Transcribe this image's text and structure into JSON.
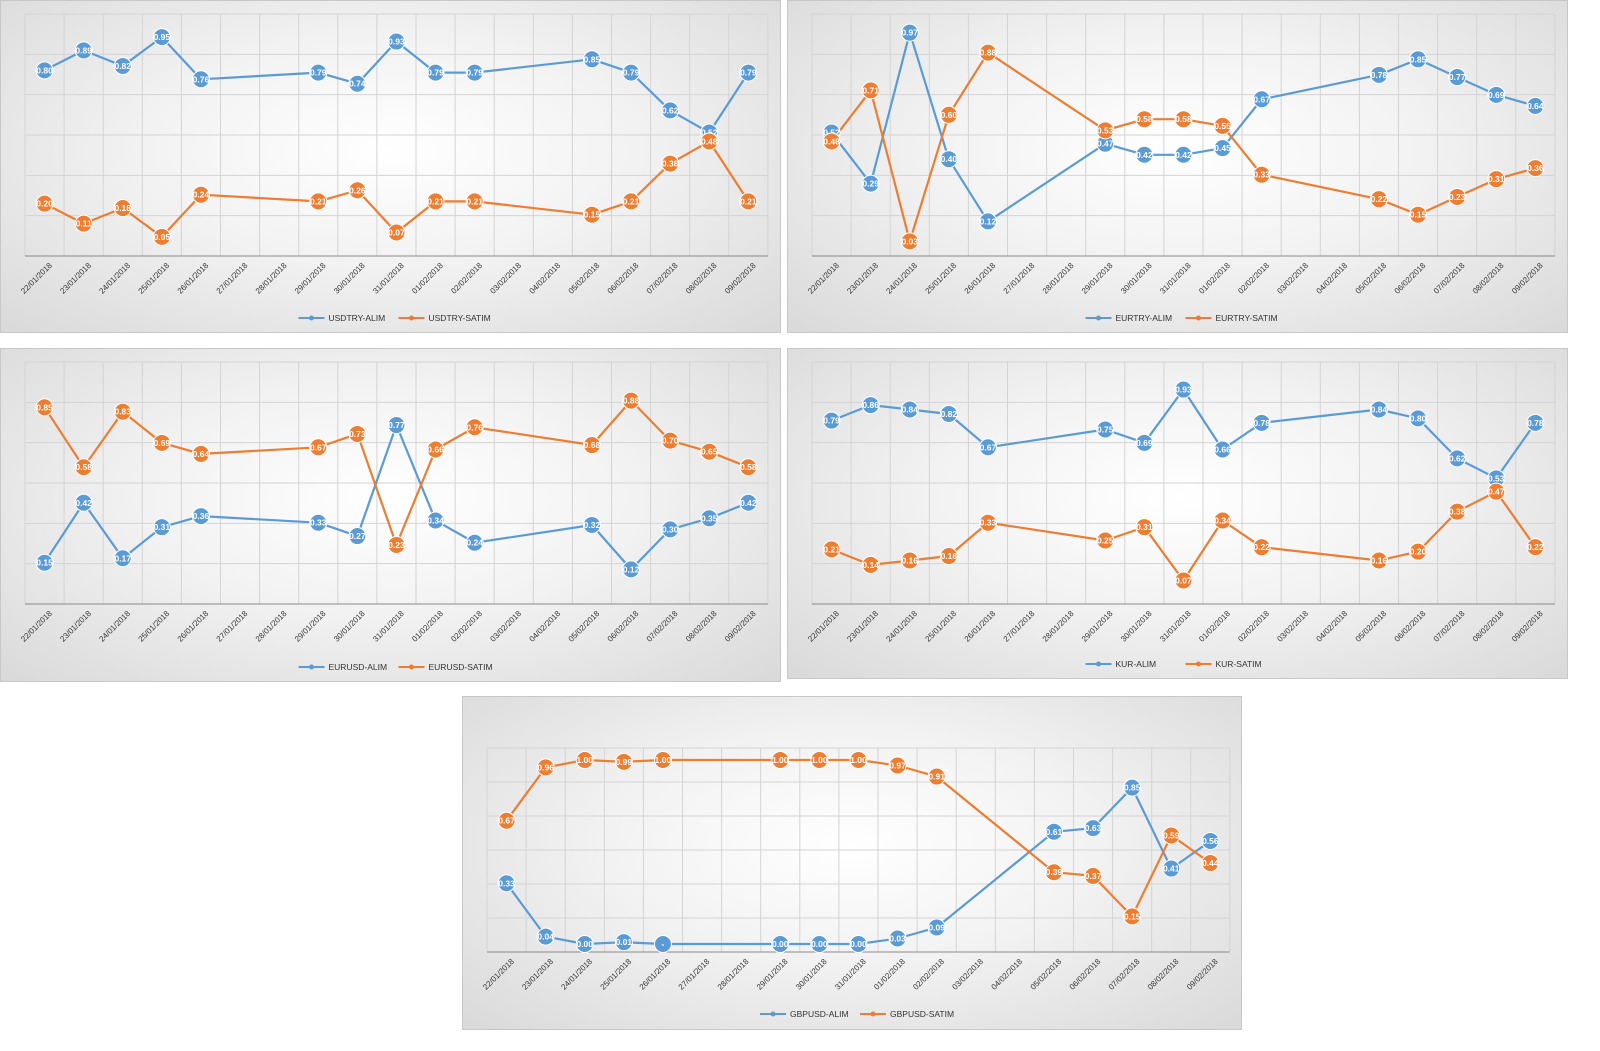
{
  "colors": {
    "alim": "#5b9bd5",
    "satim": "#ed7d31"
  },
  "categories": [
    "22/01/2018",
    "23/01/2018",
    "24/01/2018",
    "25/01/2018",
    "26/01/2018",
    "27/01/2018",
    "28/01/2018",
    "29/01/2018",
    "30/01/2018",
    "31/01/2018",
    "01/02/2018",
    "02/02/2018",
    "03/02/2018",
    "04/02/2018",
    "05/02/2018",
    "06/02/2018",
    "07/02/2018",
    "08/02/2018",
    "09/02/2018"
  ],
  "chart_data": [
    {
      "type": "line",
      "title": "",
      "categories": [
        "22/01/2018",
        "23/01/2018",
        "24/01/2018",
        "25/01/2018",
        "26/01/2018",
        "27/01/2018",
        "28/01/2018",
        "29/01/2018",
        "30/01/2018",
        "31/01/2018",
        "01/02/2018",
        "02/02/2018",
        "03/02/2018",
        "04/02/2018",
        "05/02/2018",
        "06/02/2018",
        "07/02/2018",
        "08/02/2018",
        "09/02/2018"
      ],
      "ylim": [
        0,
        1
      ],
      "series": [
        {
          "name": "USDTRY-ALIM",
          "values": [
            0.8,
            0.89,
            0.82,
            0.95,
            0.76,
            null,
            null,
            0.79,
            0.74,
            0.93,
            0.79,
            0.79,
            null,
            null,
            0.85,
            0.79,
            0.62,
            0.52,
            0.79
          ],
          "labels": [
            "0.80",
            "0.89",
            "0.82",
            "0.95",
            "0.76",
            null,
            null,
            "0.79",
            "0.74",
            "0.93",
            "0.79",
            "0.79",
            null,
            null,
            "0.85",
            "0.79",
            "0.62",
            "0.52",
            "0.79"
          ]
        },
        {
          "name": "USDTRY-SATIM",
          "values": [
            0.2,
            0.11,
            0.18,
            0.05,
            0.24,
            null,
            null,
            0.21,
            0.26,
            0.07,
            0.21,
            0.21,
            null,
            null,
            0.15,
            0.21,
            0.38,
            0.48,
            0.21
          ],
          "labels": [
            "0.20",
            "0.11",
            "0.18",
            "0.05",
            "0.24",
            null,
            null,
            "0.21",
            "0.26",
            "0.07",
            "0.21",
            "0.21",
            null,
            null,
            "0.15",
            "0.21",
            "0.38",
            "0.48",
            "0.21"
          ]
        }
      ]
    },
    {
      "type": "line",
      "title": "",
      "categories": [
        "22/01/2018",
        "23/01/2018",
        "24/01/2018",
        "25/01/2018",
        "26/01/2018",
        "27/01/2018",
        "28/01/2018",
        "29/01/2018",
        "30/01/2018",
        "31/01/2018",
        "01/02/2018",
        "02/02/2018",
        "03/02/2018",
        "04/02/2018",
        "05/02/2018",
        "06/02/2018",
        "07/02/2018",
        "08/02/2018",
        "09/02/2018"
      ],
      "ylim": [
        0,
        1
      ],
      "series": [
        {
          "name": "EURTRY-ALIM",
          "values": [
            0.52,
            0.29,
            0.97,
            0.4,
            0.12,
            null,
            null,
            0.47,
            0.42,
            0.42,
            0.45,
            0.67,
            null,
            null,
            0.78,
            0.85,
            0.77,
            0.69,
            0.64
          ],
          "labels": [
            "0.52",
            "0.29",
            "0.97",
            "0.40",
            "0.12",
            null,
            null,
            "0.47",
            "0.42",
            "0.42",
            "0.45",
            "0.67",
            null,
            null,
            "0.78",
            "0.85",
            "0.77",
            "0.69",
            "0.64"
          ]
        },
        {
          "name": "EURTRY-SATIM",
          "values": [
            0.48,
            0.71,
            0.03,
            0.6,
            0.88,
            null,
            null,
            0.53,
            0.58,
            0.58,
            0.55,
            0.33,
            null,
            null,
            0.22,
            0.15,
            0.23,
            0.31,
            0.36
          ],
          "labels": [
            "0.48",
            "0.71",
            "0.03",
            "0.60",
            "0.88",
            null,
            null,
            "0.53",
            "0.58",
            "0.58",
            "0.55",
            "0.33",
            null,
            null,
            "0.22",
            "0.15",
            "0.23",
            "0.31",
            "0.36"
          ]
        }
      ]
    },
    {
      "type": "line",
      "title": "",
      "categories": [
        "22/01/2018",
        "23/01/2018",
        "24/01/2018",
        "25/01/2018",
        "26/01/2018",
        "27/01/2018",
        "28/01/2018",
        "29/01/2018",
        "30/01/2018",
        "31/01/2018",
        "01/02/2018",
        "02/02/2018",
        "03/02/2018",
        "04/02/2018",
        "05/02/2018",
        "06/02/2018",
        "07/02/2018",
        "08/02/2018",
        "09/02/2018"
      ],
      "ylim": [
        0,
        1
      ],
      "series": [
        {
          "name": "EURUSD-ALIM",
          "values": [
            0.15,
            0.42,
            0.17,
            0.31,
            0.36,
            null,
            null,
            0.33,
            0.27,
            0.77,
            0.34,
            0.24,
            null,
            null,
            0.32,
            0.12,
            0.3,
            0.35,
            0.42
          ],
          "labels": [
            "0.15",
            "0.42",
            "0.17",
            "0.31",
            "0.36",
            null,
            null,
            "0.33",
            "0.27",
            "0.77",
            "0.34",
            "0.24",
            null,
            null,
            "0.32",
            "0.12",
            "0.30",
            "0.35",
            "0.42"
          ]
        },
        {
          "name": "EURUSD-SATIM",
          "values": [
            0.85,
            0.58,
            0.83,
            0.69,
            0.64,
            null,
            null,
            0.67,
            0.73,
            0.23,
            0.66,
            0.76,
            null,
            null,
            0.68,
            0.88,
            0.7,
            0.65,
            0.58
          ],
          "labels": [
            "0.85",
            "0.58",
            "0.83",
            "0.69",
            "0.64",
            null,
            null,
            "0.67",
            "0.73",
            "0.23",
            "0.66",
            "0.76",
            null,
            null,
            "0.68",
            "0.88",
            "0.70",
            "0.65",
            "0.58"
          ]
        }
      ]
    },
    {
      "type": "line",
      "title": "",
      "categories": [
        "22/01/2018",
        "23/01/2018",
        "24/01/2018",
        "25/01/2018",
        "26/01/2018",
        "27/01/2018",
        "28/01/2018",
        "29/01/2018",
        "30/01/2018",
        "31/01/2018",
        "01/02/2018",
        "02/02/2018",
        "03/02/2018",
        "04/02/2018",
        "05/02/2018",
        "06/02/2018",
        "07/02/2018",
        "08/02/2018",
        "09/02/2018"
      ],
      "ylim": [
        0,
        1
      ],
      "series": [
        {
          "name": "KUR-ALIM",
          "values": [
            0.79,
            0.86,
            0.84,
            0.82,
            0.67,
            null,
            null,
            0.75,
            0.69,
            0.93,
            0.66,
            0.78,
            null,
            null,
            0.84,
            0.8,
            0.62,
            0.53,
            0.78
          ],
          "labels": [
            "0.79",
            "0.86",
            "0.84",
            "0.82",
            "0.67",
            null,
            null,
            "0.75",
            "0.69",
            "0.93",
            "0.66",
            "0.78",
            null,
            null,
            "0.84",
            "0.80",
            "0.62",
            "0.53",
            "0.78"
          ]
        },
        {
          "name": "KUR-SATIM",
          "values": [
            0.21,
            0.14,
            0.16,
            0.18,
            0.33,
            null,
            null,
            0.25,
            0.31,
            0.07,
            0.34,
            0.22,
            null,
            null,
            0.16,
            0.2,
            0.38,
            0.47,
            0.22
          ],
          "labels": [
            "0.21",
            "0.14",
            "0.16",
            "0.18",
            "0.33",
            null,
            null,
            "0.25",
            "0.31",
            "0.07",
            "0.34",
            "0.22",
            null,
            null,
            "0.16",
            "0.20",
            "0.38",
            "0.47",
            "0.22"
          ]
        }
      ]
    },
    {
      "type": "line",
      "title": "",
      "categories": [
        "22/01/2018",
        "23/01/2018",
        "24/01/2018",
        "25/01/2018",
        "26/01/2018",
        "27/01/2018",
        "28/01/2018",
        "29/01/2018",
        "30/01/2018",
        "31/01/2018",
        "01/02/2018",
        "02/02/2018",
        "03/02/2018",
        "04/02/2018",
        "05/02/2018",
        "06/02/2018",
        "07/02/2018",
        "08/02/2018",
        "09/02/2018"
      ],
      "ylim": [
        0,
        1
      ],
      "series": [
        {
          "name": "GBPUSD-ALIM",
          "values": [
            0.33,
            0.04,
            0.0,
            0.01,
            0,
            null,
            null,
            0.0,
            0.0,
            0.0,
            0.03,
            0.09,
            null,
            null,
            0.61,
            0.63,
            0.85,
            0.41,
            0.56
          ],
          "labels": [
            "0.33",
            "0.04",
            "0.00",
            "0.01",
            "-",
            null,
            null,
            "0.00",
            "0.00",
            "0.00",
            "0.03",
            "0.09",
            null,
            null,
            "0.61",
            "0.63",
            "0.85",
            "0.41",
            "0.56"
          ]
        },
        {
          "name": "GBPUSD-SATIM",
          "values": [
            0.67,
            0.96,
            1.0,
            0.99,
            1.0,
            null,
            null,
            1.0,
            1.0,
            1.0,
            0.97,
            0.91,
            null,
            null,
            0.39,
            0.37,
            0.15,
            0.59,
            0.44
          ],
          "labels": [
            "0.67",
            "0.96",
            "1.00",
            "0.99",
            "1.00",
            null,
            null,
            "1.00",
            "1.00",
            "1.00",
            "0.97",
            "0.91",
            null,
            null,
            "0.39",
            "0.37",
            "0.15",
            "0.59",
            "0.44"
          ]
        }
      ]
    }
  ]
}
